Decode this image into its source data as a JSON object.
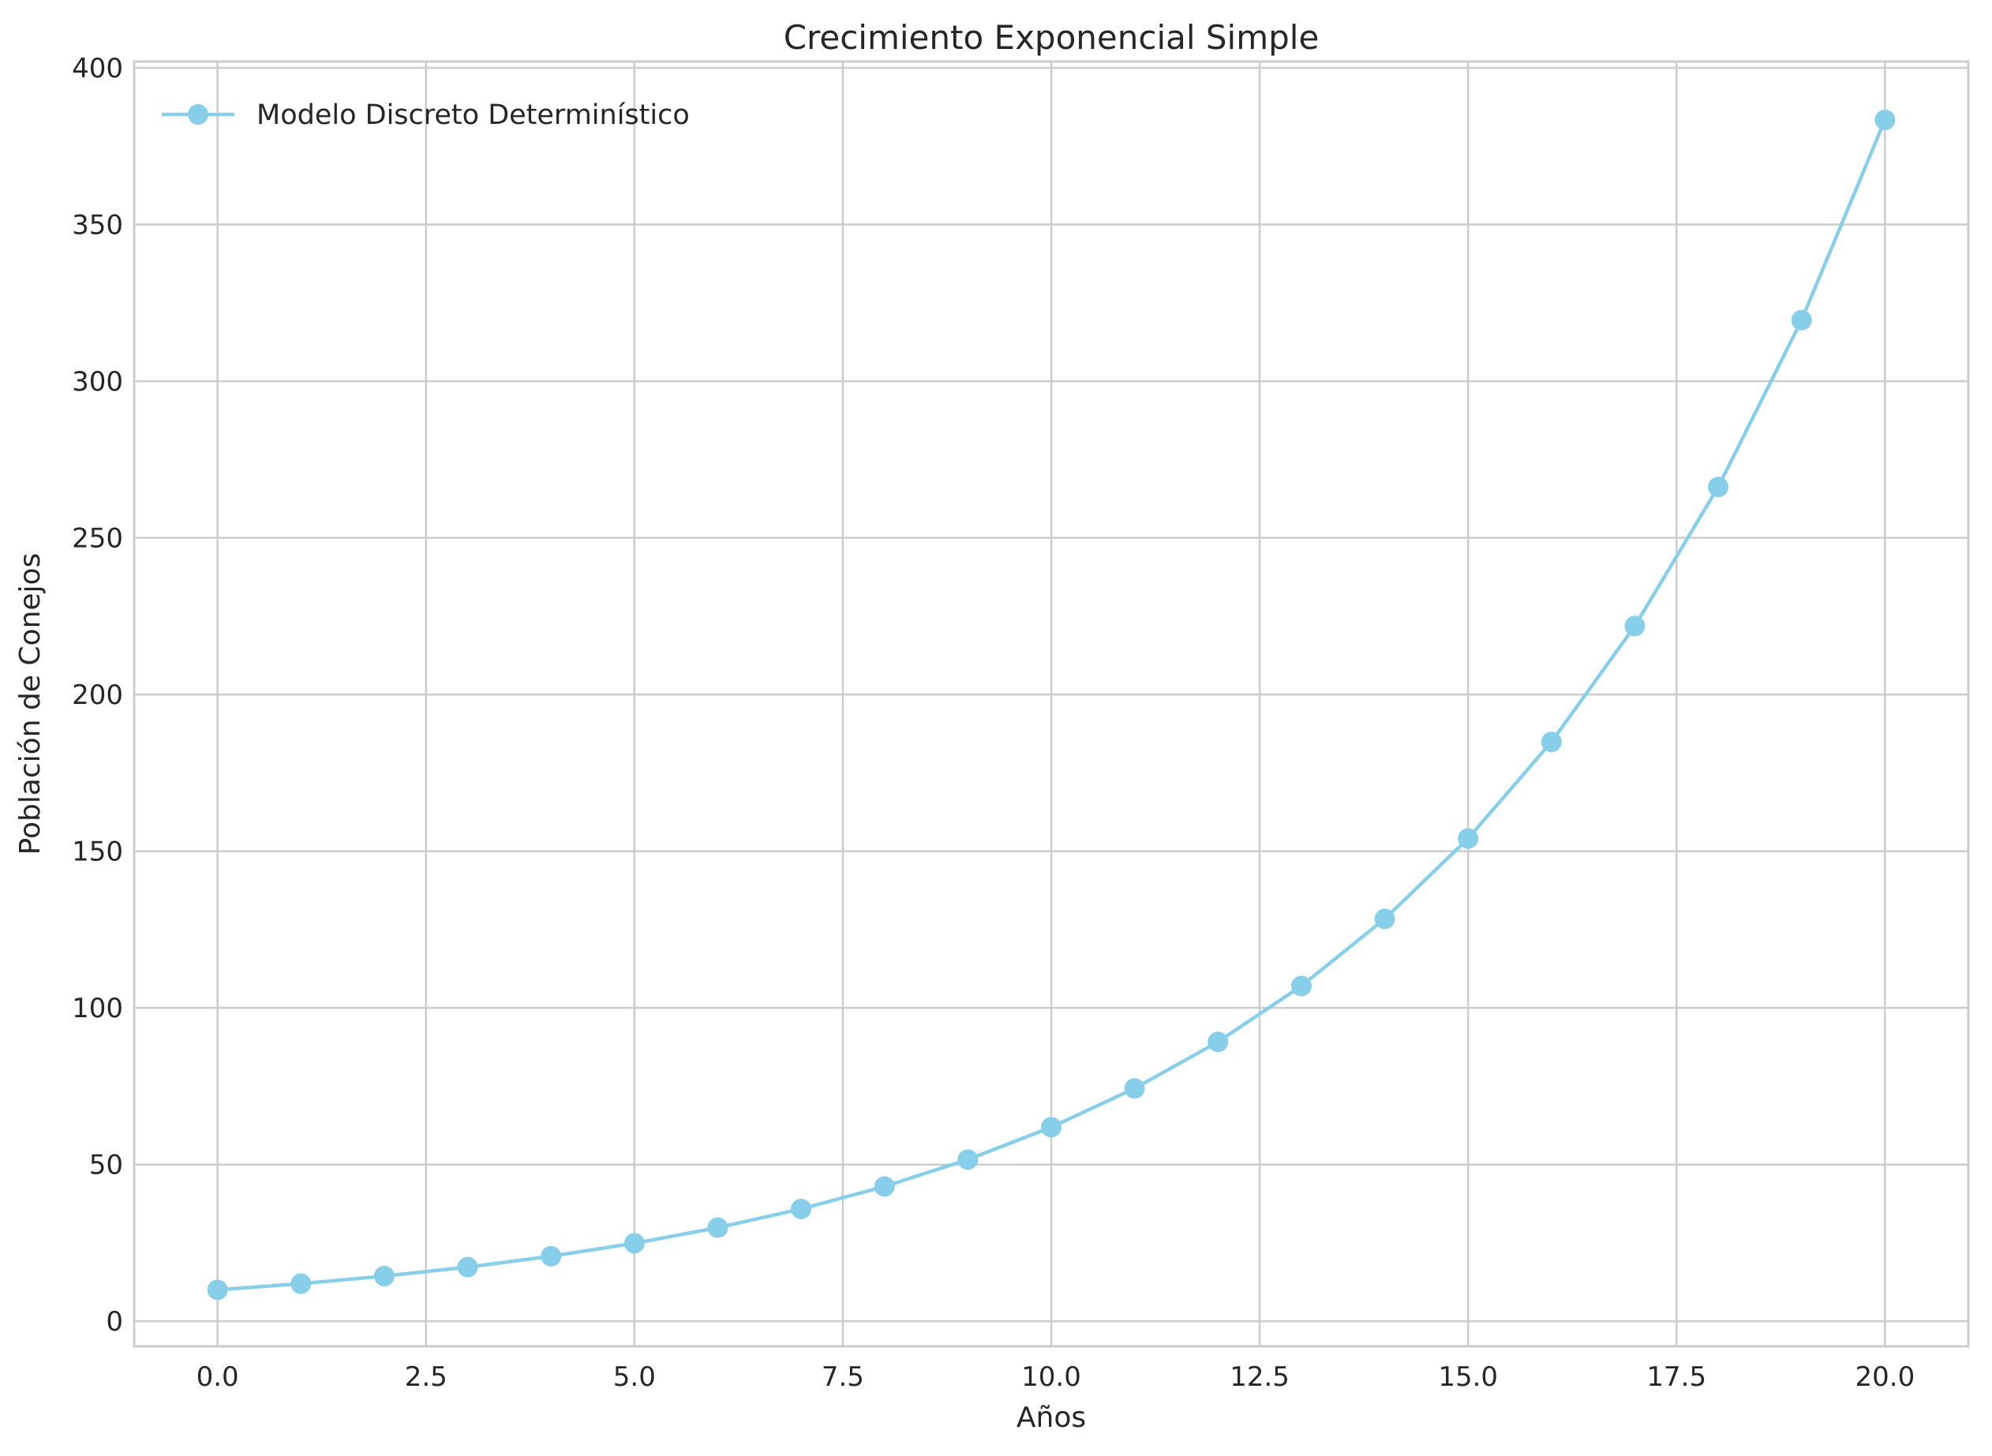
{
  "chart_data": {
    "type": "line",
    "title": "Crecimiento Exponencial Simple",
    "xlabel": "Años",
    "ylabel": "Población de Conejos",
    "xlim": [
      -1,
      21
    ],
    "ylim": [
      -8,
      402
    ],
    "x_ticks": [
      0.0,
      2.5,
      5.0,
      7.5,
      10.0,
      12.5,
      15.0,
      17.5,
      20.0
    ],
    "x_tick_labels": [
      "0.0",
      "2.5",
      "5.0",
      "7.5",
      "10.0",
      "12.5",
      "15.0",
      "17.5",
      "20.0"
    ],
    "y_ticks": [
      0,
      50,
      100,
      150,
      200,
      250,
      300,
      350,
      400
    ],
    "y_tick_labels": [
      "0",
      "50",
      "100",
      "150",
      "200",
      "250",
      "300",
      "350",
      "400"
    ],
    "grid": true,
    "legend_position": "top-left",
    "series": [
      {
        "name": "Modelo Discreto Determinístico",
        "color": "#87ceeb",
        "marker": "circle",
        "x": [
          0,
          1,
          2,
          3,
          4,
          5,
          6,
          7,
          8,
          9,
          10,
          11,
          12,
          13,
          14,
          15,
          16,
          17,
          18,
          19,
          20
        ],
        "values": [
          10,
          12,
          14.4,
          17.28,
          20.74,
          24.88,
          29.86,
          35.83,
          43.0,
          51.6,
          61.92,
          74.3,
          89.16,
          106.99,
          128.39,
          154.07,
          184.88,
          221.86,
          266.23,
          319.48,
          383.38
        ]
      }
    ]
  }
}
